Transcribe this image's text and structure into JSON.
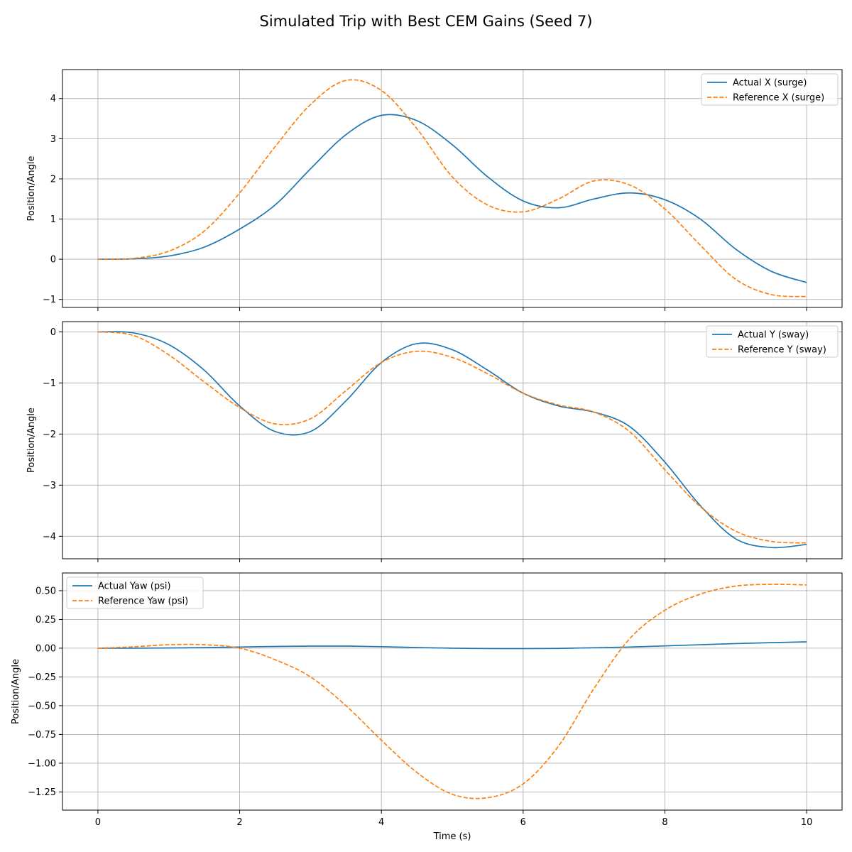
{
  "figure": {
    "title": "Simulated Trip with Best CEM Gains (Seed 7)"
  },
  "colors": {
    "actual": "#1f77b4",
    "reference": "#ff7f0e",
    "grid": "#b0b0b0"
  },
  "chart_data": [
    {
      "type": "line",
      "ylabel": "Position/Angle",
      "xlabel": "",
      "xlim": [
        -0.5,
        10.5
      ],
      "ylim": [
        -1.2,
        4.72
      ],
      "xticks": [
        0,
        2,
        4,
        6,
        8,
        10
      ],
      "yticks": [
        -1,
        0,
        1,
        2,
        3,
        4
      ],
      "ytick_labels": [
        "−1",
        "0",
        "1",
        "2",
        "3",
        "4"
      ],
      "show_xtick_labels": false,
      "grid": true,
      "legend": "upper right",
      "x": [
        0,
        0.5,
        1,
        1.5,
        2,
        2.5,
        3,
        3.5,
        4,
        4.5,
        5,
        5.5,
        6,
        6.5,
        7,
        7.5,
        8,
        8.5,
        9,
        9.5,
        10
      ],
      "series": [
        {
          "name": "Actual X (surge)",
          "style": "solid",
          "values": [
            0.0,
            0.01,
            0.08,
            0.3,
            0.75,
            1.35,
            2.25,
            3.1,
            3.58,
            3.45,
            2.85,
            2.05,
            1.45,
            1.28,
            1.5,
            1.65,
            1.48,
            1.0,
            0.25,
            -0.3,
            -0.58
          ]
        },
        {
          "name": "Reference X (surge)",
          "style": "dashed",
          "values": [
            0.0,
            0.02,
            0.2,
            0.7,
            1.65,
            2.8,
            3.85,
            4.45,
            4.2,
            3.25,
            2.05,
            1.35,
            1.18,
            1.5,
            1.95,
            1.85,
            1.25,
            0.35,
            -0.5,
            -0.88,
            -0.93
          ]
        }
      ]
    },
    {
      "type": "line",
      "ylabel": "Position/Angle",
      "xlabel": "",
      "xlim": [
        -0.5,
        10.5
      ],
      "ylim": [
        -4.44,
        0.2
      ],
      "xticks": [
        0,
        2,
        4,
        6,
        8,
        10
      ],
      "yticks": [
        0,
        -1,
        -2,
        -3,
        -4
      ],
      "ytick_labels": [
        "0",
        "−1",
        "−2",
        "−3",
        "−4"
      ],
      "show_xtick_labels": false,
      "grid": true,
      "legend": "upper right",
      "x": [
        0,
        0.5,
        1,
        1.5,
        2,
        2.5,
        3,
        3.5,
        4,
        4.5,
        5,
        5.5,
        6,
        6.5,
        7,
        7.5,
        8,
        8.5,
        9,
        9.5,
        10
      ],
      "series": [
        {
          "name": "Actual Y (sway)",
          "style": "solid",
          "values": [
            0.0,
            -0.02,
            -0.25,
            -0.75,
            -1.45,
            -1.95,
            -1.95,
            -1.35,
            -0.6,
            -0.23,
            -0.35,
            -0.75,
            -1.2,
            -1.45,
            -1.57,
            -1.85,
            -2.55,
            -3.4,
            -4.05,
            -4.22,
            -4.16
          ]
        },
        {
          "name": "Reference Y (sway)",
          "style": "dashed",
          "values": [
            0.0,
            -0.07,
            -0.45,
            -0.98,
            -1.48,
            -1.8,
            -1.7,
            -1.15,
            -0.6,
            -0.38,
            -0.5,
            -0.82,
            -1.2,
            -1.43,
            -1.57,
            -1.95,
            -2.7,
            -3.42,
            -3.9,
            -4.1,
            -4.13
          ]
        }
      ]
    },
    {
      "type": "line",
      "ylabel": "Position/Angle",
      "xlabel": "Time (s)",
      "xlim": [
        -0.5,
        10.5
      ],
      "ylim": [
        -1.408,
        0.654
      ],
      "xticks": [
        0,
        2,
        4,
        6,
        8,
        10
      ],
      "xtick_labels": [
        "0",
        "2",
        "4",
        "6",
        "8",
        "10"
      ],
      "yticks": [
        0.5,
        0.25,
        0.0,
        -0.25,
        -0.5,
        -0.75,
        -1.0,
        -1.25
      ],
      "ytick_labels": [
        "0.50",
        "0.25",
        "0.00",
        "−0.25",
        "−0.50",
        "−0.75",
        "−1.00",
        "−1.25"
      ],
      "show_xtick_labels": true,
      "grid": true,
      "legend": "upper left",
      "x": [
        0,
        0.5,
        1,
        1.5,
        2,
        2.5,
        3,
        3.5,
        4,
        4.5,
        5,
        5.5,
        6,
        6.5,
        7,
        7.5,
        8,
        8.5,
        9,
        9.5,
        10
      ],
      "series": [
        {
          "name": "Actual Yaw (psi)",
          "style": "solid",
          "values": [
            0.0,
            0.0,
            0.002,
            0.005,
            0.01,
            0.015,
            0.018,
            0.018,
            0.013,
            0.006,
            0.0,
            -0.003,
            -0.004,
            -0.002,
            0.004,
            0.01,
            0.02,
            0.03,
            0.04,
            0.048,
            0.055
          ]
        },
        {
          "name": "Reference Yaw (psi)",
          "style": "dashed",
          "values": [
            0.0,
            0.012,
            0.03,
            0.03,
            0.0,
            -0.1,
            -0.25,
            -0.5,
            -0.8,
            -1.08,
            -1.27,
            -1.3,
            -1.18,
            -0.85,
            -0.35,
            0.08,
            0.33,
            0.47,
            0.54,
            0.555,
            0.55
          ]
        }
      ]
    }
  ]
}
